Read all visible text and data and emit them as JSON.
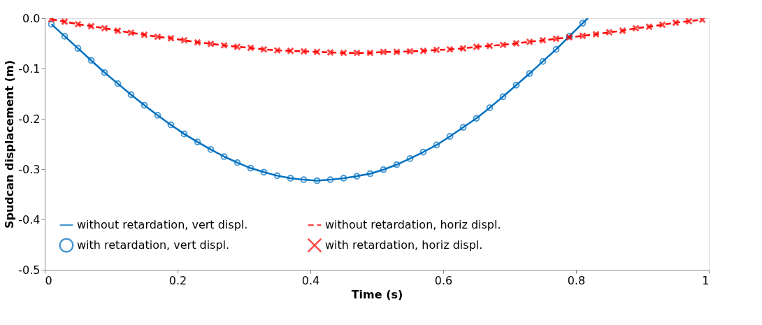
{
  "chart_data": {
    "type": "line",
    "xlabel": "Time (s)",
    "ylabel": "Spudcan displacement (m)",
    "xlim": [
      0,
      1
    ],
    "xticks": [
      0,
      0.2,
      0.4,
      0.6,
      0.8,
      1
    ],
    "ylim": [
      -0.5,
      0
    ],
    "yticks": [
      {
        "value": 0,
        "label": "0.0"
      },
      {
        "value": -0.1,
        "label": "-0.1"
      },
      {
        "value": -0.2,
        "label": "-0.2"
      },
      {
        "value": -0.3,
        "label": "-0.3"
      },
      {
        "value": -0.4,
        "label": "-0.4"
      },
      {
        "value": -0.5,
        "label": "-0.5"
      }
    ],
    "grid": false,
    "legend": "bottom",
    "series": [
      {
        "name": "without retardation, vert displ.",
        "line_style": "solid",
        "color": "#0070c0",
        "x": [
          0.01,
          0.03,
          0.05,
          0.07,
          0.09,
          0.11,
          0.13,
          0.15,
          0.17,
          0.19,
          0.21,
          0.23,
          0.25,
          0.27,
          0.29,
          0.31,
          0.33,
          0.35,
          0.37,
          0.39,
          0.41,
          0.43,
          0.45,
          0.47,
          0.49,
          0.51,
          0.53,
          0.55,
          0.57,
          0.59,
          0.61,
          0.63,
          0.65,
          0.67,
          0.69,
          0.71,
          0.73,
          0.75,
          0.77,
          0.79,
          0.81,
          0.818
        ],
        "values": [
          -0.012,
          -0.036,
          -0.06,
          -0.084,
          -0.108,
          -0.13,
          -0.152,
          -0.173,
          -0.193,
          -0.212,
          -0.23,
          -0.246,
          -0.261,
          -0.275,
          -0.287,
          -0.298,
          -0.306,
          -0.313,
          -0.318,
          -0.321,
          -0.323,
          -0.321,
          -0.318,
          -0.314,
          -0.309,
          -0.301,
          -0.291,
          -0.279,
          -0.266,
          -0.252,
          -0.235,
          -0.217,
          -0.199,
          -0.178,
          -0.156,
          -0.133,
          -0.11,
          -0.086,
          -0.062,
          -0.036,
          -0.01,
          0.0
        ]
      },
      {
        "name": "without retardation, horiz displ.",
        "line_style": "dashed",
        "color": "#ff0000",
        "x": [
          0.01,
          0.03,
          0.05,
          0.07,
          0.09,
          0.11,
          0.13,
          0.15,
          0.17,
          0.19,
          0.21,
          0.23,
          0.25,
          0.27,
          0.29,
          0.31,
          0.33,
          0.35,
          0.37,
          0.39,
          0.41,
          0.43,
          0.45,
          0.47,
          0.49,
          0.51,
          0.53,
          0.55,
          0.57,
          0.59,
          0.61,
          0.63,
          0.65,
          0.67,
          0.69,
          0.71,
          0.73,
          0.75,
          0.77,
          0.79,
          0.81,
          0.83,
          0.85,
          0.87,
          0.89,
          0.91,
          0.93,
          0.95,
          0.97,
          0.99
        ],
        "values": [
          -0.002,
          -0.007,
          -0.012,
          -0.016,
          -0.02,
          -0.025,
          -0.029,
          -0.033,
          -0.037,
          -0.04,
          -0.044,
          -0.048,
          -0.051,
          -0.054,
          -0.057,
          -0.059,
          -0.062,
          -0.064,
          -0.065,
          -0.066,
          -0.067,
          -0.068,
          -0.069,
          -0.069,
          -0.069,
          -0.067,
          -0.067,
          -0.066,
          -0.065,
          -0.063,
          -0.062,
          -0.06,
          -0.057,
          -0.055,
          -0.053,
          -0.05,
          -0.047,
          -0.044,
          -0.041,
          -0.038,
          -0.035,
          -0.032,
          -0.028,
          -0.025,
          -0.02,
          -0.017,
          -0.013,
          -0.009,
          -0.006,
          -0.003
        ]
      },
      {
        "name": "with retardation, vert displ.",
        "type": "scatter",
        "marker": "circle",
        "color": "#0070c0",
        "x": [
          0.01,
          0.03,
          0.05,
          0.07,
          0.09,
          0.11,
          0.13,
          0.15,
          0.17,
          0.19,
          0.21,
          0.23,
          0.25,
          0.27,
          0.29,
          0.31,
          0.33,
          0.35,
          0.37,
          0.39,
          0.41,
          0.43,
          0.45,
          0.47,
          0.49,
          0.51,
          0.53,
          0.55,
          0.57,
          0.59,
          0.61,
          0.63,
          0.65,
          0.67,
          0.69,
          0.71,
          0.73,
          0.75,
          0.77,
          0.79,
          0.81
        ],
        "values": [
          -0.012,
          -0.036,
          -0.06,
          -0.084,
          -0.108,
          -0.13,
          -0.152,
          -0.173,
          -0.193,
          -0.212,
          -0.23,
          -0.246,
          -0.261,
          -0.275,
          -0.287,
          -0.298,
          -0.306,
          -0.313,
          -0.318,
          -0.321,
          -0.323,
          -0.321,
          -0.318,
          -0.314,
          -0.309,
          -0.301,
          -0.291,
          -0.279,
          -0.266,
          -0.252,
          -0.235,
          -0.217,
          -0.199,
          -0.178,
          -0.156,
          -0.133,
          -0.11,
          -0.086,
          -0.062,
          -0.036,
          -0.01
        ]
      },
      {
        "name": "with retardation, horiz displ.",
        "type": "scatter",
        "marker": "cross",
        "color": "#ff0000",
        "x": [
          0.01,
          0.03,
          0.05,
          0.07,
          0.09,
          0.11,
          0.13,
          0.15,
          0.17,
          0.19,
          0.21,
          0.23,
          0.25,
          0.27,
          0.29,
          0.31,
          0.33,
          0.35,
          0.37,
          0.39,
          0.41,
          0.43,
          0.45,
          0.47,
          0.49,
          0.51,
          0.53,
          0.55,
          0.57,
          0.59,
          0.61,
          0.63,
          0.65,
          0.67,
          0.69,
          0.71,
          0.73,
          0.75,
          0.77,
          0.79,
          0.81,
          0.83,
          0.85,
          0.87,
          0.89,
          0.91,
          0.93,
          0.95,
          0.97,
          0.99
        ],
        "values": [
          -0.002,
          -0.007,
          -0.012,
          -0.016,
          -0.02,
          -0.025,
          -0.029,
          -0.033,
          -0.037,
          -0.04,
          -0.044,
          -0.048,
          -0.051,
          -0.054,
          -0.057,
          -0.059,
          -0.062,
          -0.064,
          -0.065,
          -0.066,
          -0.067,
          -0.068,
          -0.069,
          -0.069,
          -0.069,
          -0.067,
          -0.067,
          -0.066,
          -0.065,
          -0.063,
          -0.062,
          -0.06,
          -0.057,
          -0.055,
          -0.053,
          -0.05,
          -0.047,
          -0.044,
          -0.041,
          -0.038,
          -0.035,
          -0.032,
          -0.028,
          -0.025,
          -0.02,
          -0.017,
          -0.013,
          -0.009,
          -0.006,
          -0.003
        ]
      }
    ]
  }
}
